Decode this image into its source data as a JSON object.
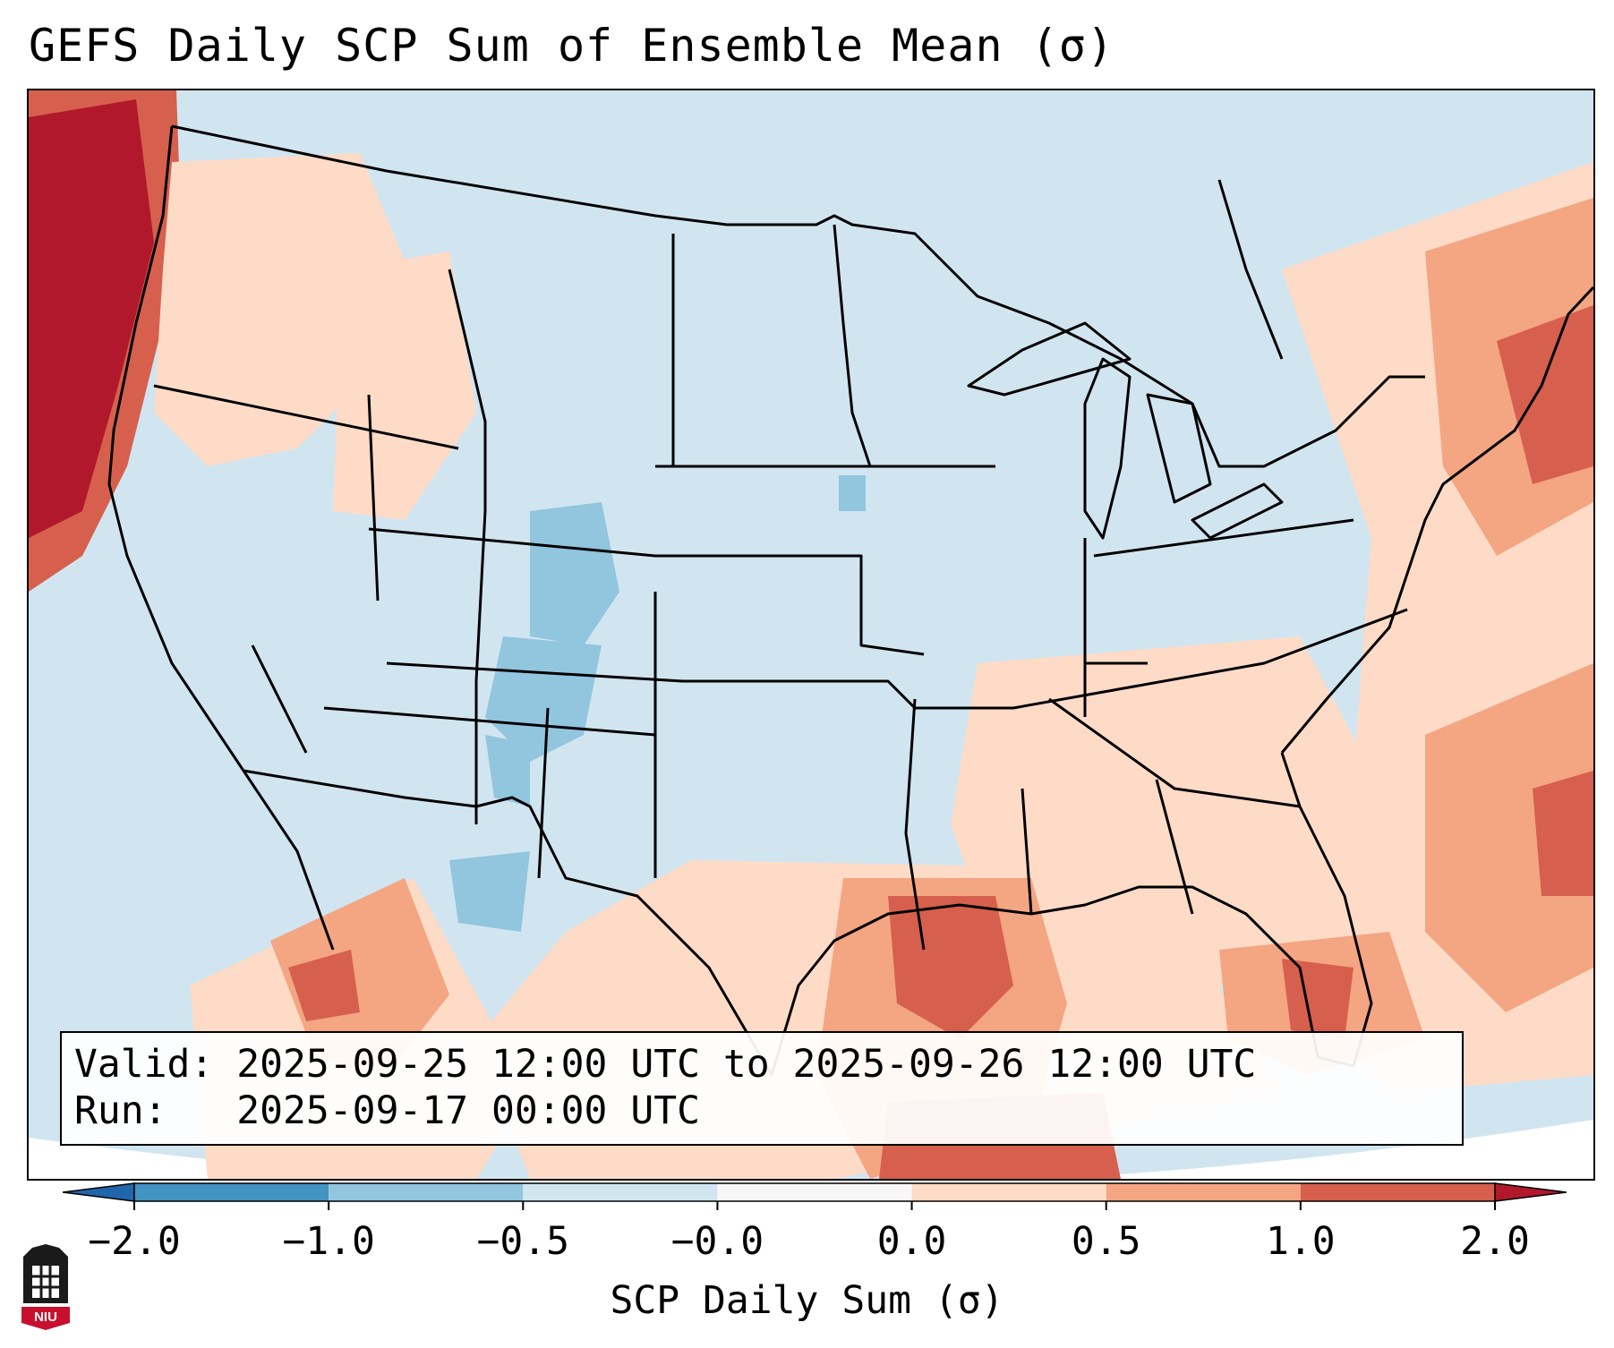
{
  "title": "GEFS Daily SCP Sum of Ensemble Mean (σ)",
  "info": {
    "valid_label": "Valid:",
    "valid_value": "2025-09-25 12:00 UTC to 2025-09-26 12:00 UTC",
    "run_label": "Run:",
    "run_value": "2025-09-17 00:00 UTC"
  },
  "colorbar": {
    "label": "SCP Daily Sum (σ)",
    "ticks": [
      "−2.0",
      "−1.0",
      "−0.5",
      "−0.0",
      "0.0",
      "0.5",
      "1.0",
      "2.0"
    ],
    "colors": [
      "#4393c3",
      "#92c5de",
      "#d1e5f0",
      "#f7f7f7",
      "#fddbc7",
      "#f4a582",
      "#d6604d"
    ],
    "extend_low_color": "#2166ac",
    "extend_high_color": "#b2182b"
  },
  "logo": {
    "text": "NIU",
    "icon": "niu-building-icon"
  }
}
